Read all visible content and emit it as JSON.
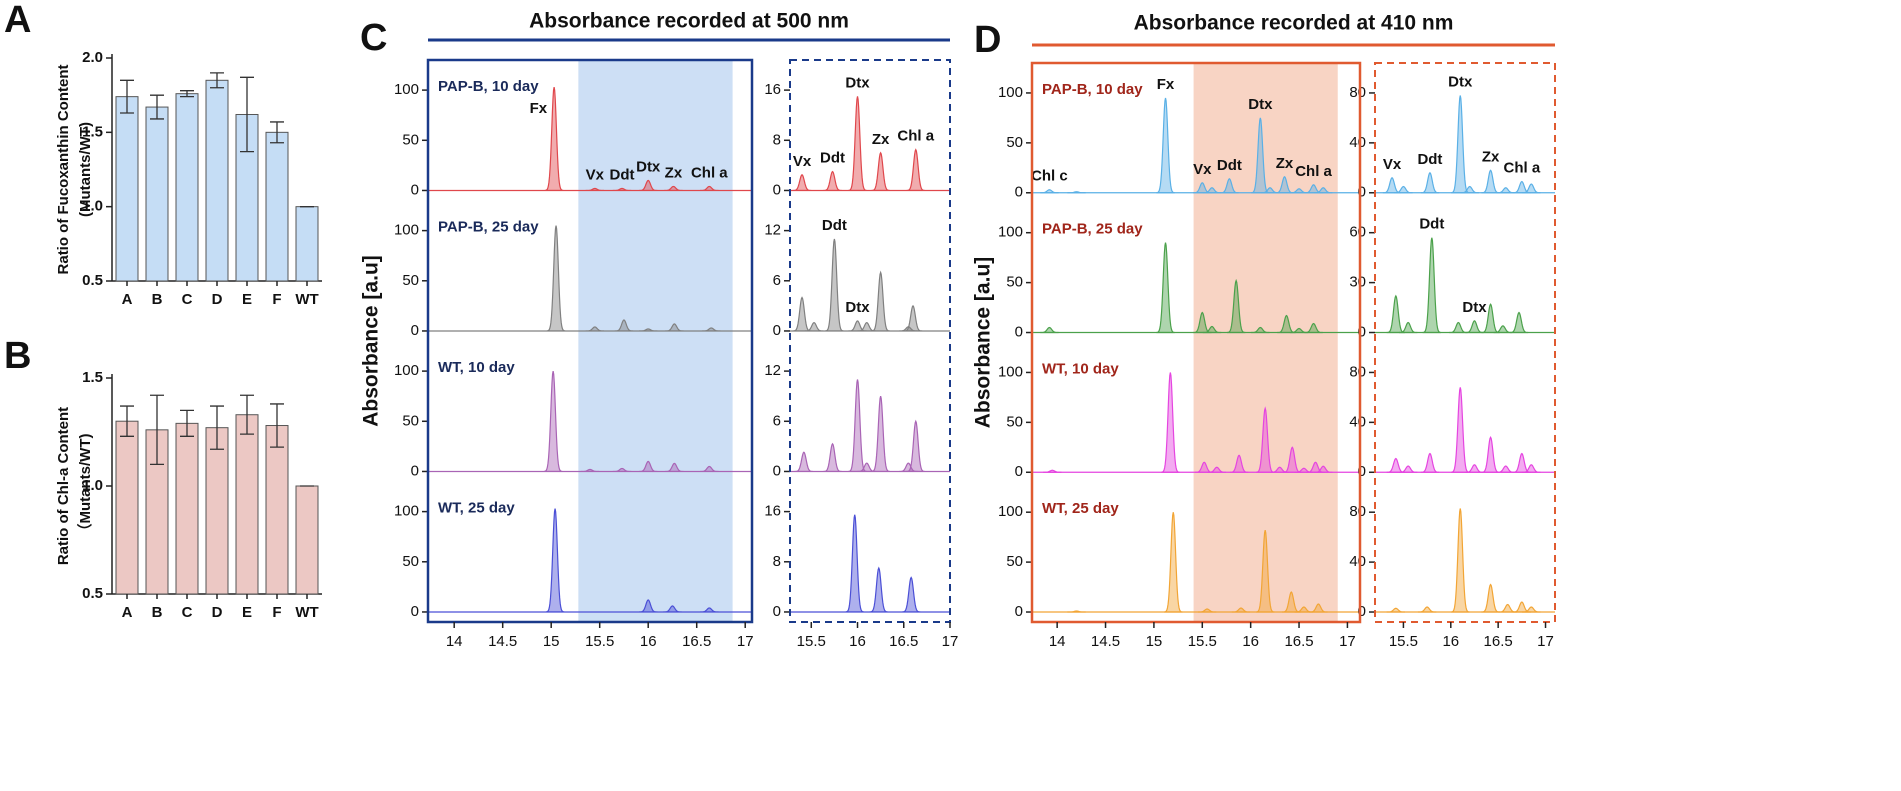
{
  "chart_data": [
    {
      "type": "bar",
      "panel_label": "A",
      "ylabel": [
        "Ratio of Fucoxanthin Content",
        "(Mutants/WT)"
      ],
      "categories": [
        "A",
        "B",
        "C",
        "D",
        "E",
        "F",
        "WT"
      ],
      "values": [
        1.74,
        1.67,
        1.76,
        1.85,
        1.62,
        1.5,
        1.0
      ],
      "errors": [
        0.11,
        0.08,
        0.02,
        0.05,
        0.25,
        0.07,
        0
      ],
      "color": "#c5ddf5",
      "ylim": [
        0.5,
        2.0
      ],
      "yticks": [
        0.5,
        {
          "value": 1,
          "label": "1.0"
        },
        1.5,
        {
          "value": 2,
          "label": "2.0"
        }
      ]
    },
    {
      "type": "bar",
      "panel_label": "B",
      "ylabel": [
        "Ratio of Chl-a Content",
        "（Mutants/WT)"
      ],
      "categories": [
        "A",
        "B",
        "C",
        "D",
        "E",
        "F",
        "WT"
      ],
      "values": [
        1.3,
        1.26,
        1.29,
        1.27,
        1.33,
        1.28,
        1.0
      ],
      "errors": [
        0.07,
        0.16,
        0.06,
        0.1,
        0.09,
        0.1,
        0
      ],
      "color": "#ecc8c4",
      "ylim": [
        0.5,
        1.5
      ],
      "yticks": [
        0.5,
        {
          "value": 1,
          "label": "1.0"
        },
        1.5
      ]
    },
    {
      "type": "chromatogram",
      "panel_label": "C",
      "title": "Absorbance recorded at 500 nm",
      "ylabel": "Absorbance [a.u]",
      "color": "#1a3a8a",
      "label_color": "#1a2a5a",
      "shade": [
        15.28,
        16.87
      ],
      "shade_color": "#cddff5",
      "xlim": [
        13.73,
        17.07
      ],
      "xticks": [
        14,
        14.5,
        15,
        15.5,
        16,
        16.5,
        17
      ],
      "ylim": [
        -10,
        130
      ],
      "yticks": [
        0,
        50,
        100
      ],
      "inset": {
        "xlim": [
          15.27,
          17.0
        ],
        "xticks": [
          15.5,
          16,
          16.5,
          17
        ]
      },
      "traces": [
        {
          "name": "PAP-B, 10 day",
          "color": "#e0474c",
          "x": [
            15.03,
            15.45,
            15.73,
            16.0,
            16.26,
            16.63
          ],
          "values": [
            103,
            2,
            2,
            10,
            4,
            4
          ],
          "labels": [
            "Fx",
            "Vx",
            "Ddt",
            "Dtx",
            "Zx",
            "Chl a"
          ],
          "inset": {
            "ylim": [
              -1.6,
              20.8
            ],
            "yticks": [
              0,
              8,
              16
            ],
            "x": [
              15.4,
              15.73,
              16.0,
              16.25,
              16.63
            ],
            "values": [
              2.5,
              3,
              15,
              6,
              6.5
            ],
            "labels": [
              "Vx",
              "Ddt",
              "Dtx",
              "Zx",
              "Chl a"
            ]
          }
        },
        {
          "name": "PAP-B, 25 day",
          "color": "#808080",
          "x": [
            15.05,
            15.45,
            15.75,
            16.0,
            16.27,
            16.65
          ],
          "values": [
            105,
            4,
            11,
            2,
            7,
            3
          ],
          "inset": {
            "ylim": [
              -1.2,
              15.6
            ],
            "yticks": [
              0,
              6,
              12
            ],
            "x": [
              15.4,
              15.53,
              15.75,
              16.0,
              16.1,
              16.25,
              16.55,
              16.6
            ],
            "values": [
              4,
              1,
              11,
              1.2,
              1,
              7,
              0.5,
              3
            ],
            "labels": [
              null,
              null,
              "Ddt",
              "Dtx",
              null,
              null,
              null,
              null
            ]
          }
        },
        {
          "name": "WT, 10 day",
          "color": "#a964b5",
          "x": [
            15.02,
            15.4,
            15.73,
            16.0,
            16.27,
            16.63
          ],
          "values": [
            100,
            2,
            3,
            10,
            8,
            5
          ],
          "inset": {
            "ylim": [
              -1.2,
              15.6
            ],
            "yticks": [
              0,
              6,
              12
            ],
            "x": [
              15.42,
              15.73,
              16.0,
              16.1,
              16.25,
              16.55,
              16.63
            ],
            "values": [
              2.3,
              3.3,
              11,
              1,
              9,
              1,
              6
            ]
          }
        },
        {
          "name": "WT, 25 day",
          "color": "#4b4fd6",
          "x": [
            15.04,
            16.0,
            16.25,
            16.63
          ],
          "values": [
            103,
            12,
            6,
            4
          ],
          "inset": {
            "ylim": [
              -1.6,
              20.8
            ],
            "yticks": [
              0,
              8,
              16
            ],
            "x": [
              15.97,
              16.23,
              16.58
            ],
            "values": [
              15.5,
              7,
              5.5
            ]
          }
        }
      ]
    },
    {
      "type": "chromatogram",
      "panel_label": "D",
      "title": "Absorbance recorded at 410 nm",
      "ylabel": "Absorbance [a.u]",
      "color": "#e05a30",
      "label_color": "#a0251a",
      "shade": [
        15.41,
        16.9
      ],
      "shade_color": "#f8d4c4",
      "xlim": [
        13.74,
        17.13
      ],
      "xticks": [
        14,
        14.5,
        15,
        15.5,
        16,
        16.5,
        17
      ],
      "ylim": [
        -10,
        130
      ],
      "yticks": [
        0,
        50,
        100
      ],
      "inset": {
        "xlim": [
          15.2,
          17.1
        ],
        "xticks": [
          15.5,
          16,
          16.5,
          17
        ]
      },
      "traces": [
        {
          "name": "PAP-B, 10 day",
          "color": "#5ab0e6",
          "x": [
            13.92,
            14.2,
            15.12,
            15.5,
            15.6,
            15.78,
            16.1,
            16.2,
            16.35,
            16.5,
            16.65,
            16.75
          ],
          "values": [
            3,
            1,
            95,
            10,
            5,
            14,
            75,
            5,
            16,
            4,
            8,
            5
          ],
          "labels": [
            "Chl c",
            null,
            "Fx",
            "Vx",
            null,
            "Ddt",
            "Dtx",
            null,
            "Zx",
            null,
            "Chl a",
            null
          ],
          "inset": {
            "ylim": [
              -8,
              104
            ],
            "yticks": [
              0,
              40,
              80
            ],
            "x": [
              15.38,
              15.5,
              15.78,
              16.1,
              16.2,
              16.42,
              16.58,
              16.75,
              16.85
            ],
            "values": [
              12,
              5,
              16,
              78,
              5,
              18,
              4,
              9,
              7
            ],
            "labels": [
              "Vx",
              null,
              "Ddt",
              "Dtx",
              null,
              "Zx",
              null,
              "Chl a",
              null
            ]
          }
        },
        {
          "name": "PAP-B, 25 day",
          "color": "#4ba14b",
          "x": [
            13.92,
            15.12,
            15.5,
            15.6,
            15.85,
            16.1,
            16.37,
            16.5,
            16.65
          ],
          "values": [
            5,
            90,
            20,
            6,
            52,
            5,
            17,
            4,
            9
          ],
          "inset": {
            "ylim": [
              -6,
              78
            ],
            "yticks": [
              0,
              30,
              60
            ],
            "x": [
              15.42,
              15.55,
              15.8,
              16.08,
              16.25,
              16.42,
              16.55,
              16.72
            ],
            "values": [
              22,
              6,
              57,
              6,
              7,
              17,
              4,
              12
            ],
            "labels": [
              null,
              null,
              "Ddt",
              null,
              "Dtx",
              null,
              null,
              null
            ]
          }
        },
        {
          "name": "WT, 10 day",
          "color": "#e545e0",
          "x": [
            13.95,
            15.17,
            15.52,
            15.65,
            15.88,
            16.15,
            16.3,
            16.43,
            16.55,
            16.67,
            16.75
          ],
          "values": [
            2,
            100,
            10,
            5,
            17,
            64,
            5,
            25,
            4,
            10,
            6
          ],
          "inset": {
            "ylim": [
              -8,
              104
            ],
            "yticks": [
              0,
              40,
              80
            ],
            "x": [
              15.42,
              15.55,
              15.78,
              16.1,
              16.25,
              16.42,
              16.58,
              16.75,
              16.85
            ],
            "values": [
              11,
              5,
              15,
              68,
              6,
              28,
              5,
              15,
              6
            ]
          }
        },
        {
          "name": "WT, 25 day",
          "color": "#f2a535",
          "x": [
            14.2,
            15.2,
            15.55,
            15.9,
            16.15,
            16.42,
            16.55,
            16.7
          ],
          "values": [
            1,
            100,
            3,
            4,
            82,
            20,
            5,
            8
          ],
          "inset": {
            "ylim": [
              -8,
              104
            ],
            "yticks": [
              0,
              40,
              80
            ],
            "x": [
              15.42,
              15.75,
              16.1,
              16.42,
              16.6,
              16.75,
              16.85
            ],
            "values": [
              3,
              4,
              83,
              22,
              6,
              8,
              4
            ]
          }
        }
      ]
    }
  ]
}
